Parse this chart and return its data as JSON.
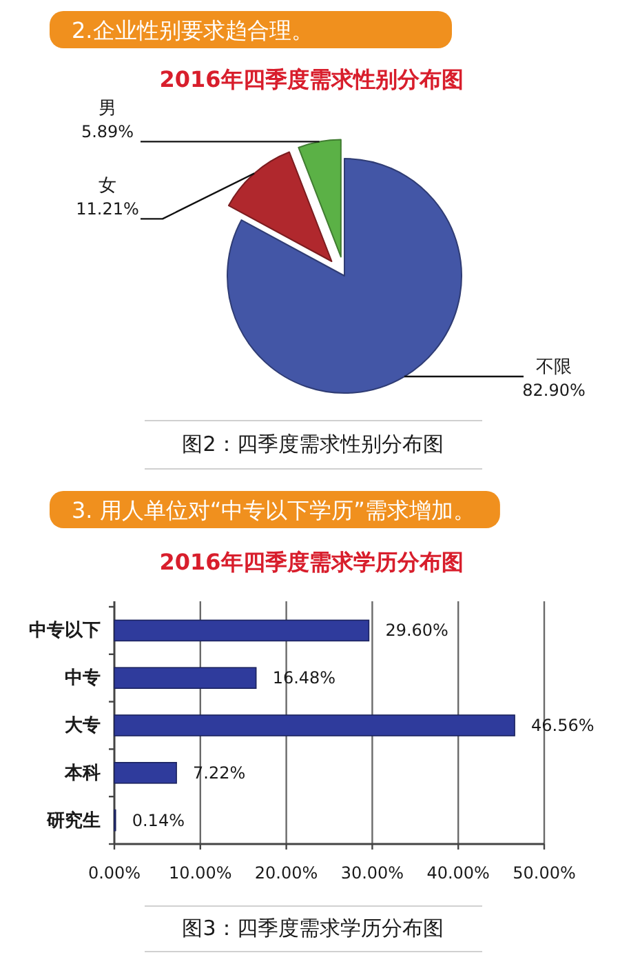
{
  "chart_data": [
    {
      "type": "pie",
      "title": "2016年四季度需求性别分布图",
      "categories": [
        "不限",
        "女",
        "男"
      ],
      "values": [
        82.9,
        11.21,
        5.89
      ],
      "colors": [
        "#4356a6",
        "#b0282d",
        "#5bb146"
      ],
      "value_labels": [
        "82.90%",
        "11.21%",
        "5.89%"
      ],
      "annotations": [
        "2.企业性别要求趋合理。",
        "图2：四季度需求性别分布图"
      ]
    },
    {
      "type": "bar",
      "orientation": "horizontal",
      "title": "2016年四季度需求学历分布图",
      "categories": [
        "中专以下",
        "中专",
        "大专",
        "本科",
        "研究生"
      ],
      "values": [
        29.6,
        16.48,
        46.56,
        7.22,
        0.14
      ],
      "color": "#2f3b9c",
      "value_labels": [
        "29.60%",
        "16.48%",
        "46.56%",
        "7.22%",
        "0.14%"
      ],
      "xlim": [
        0,
        50
      ],
      "xticks": [
        {
          "value": 0,
          "label": "0.00%"
        },
        {
          "value": 10,
          "label": "10.00%"
        },
        {
          "value": 20,
          "label": "20.00%"
        },
        {
          "value": 30,
          "label": "30.00%"
        },
        {
          "value": 40,
          "label": "40.00%"
        },
        {
          "value": 50,
          "label": "50.00%"
        }
      ],
      "grid": "x",
      "annotations": [
        "3. 用人单位对“中专以下学历”需求增加。",
        "图3：四季度需求学历分布图"
      ]
    }
  ]
}
